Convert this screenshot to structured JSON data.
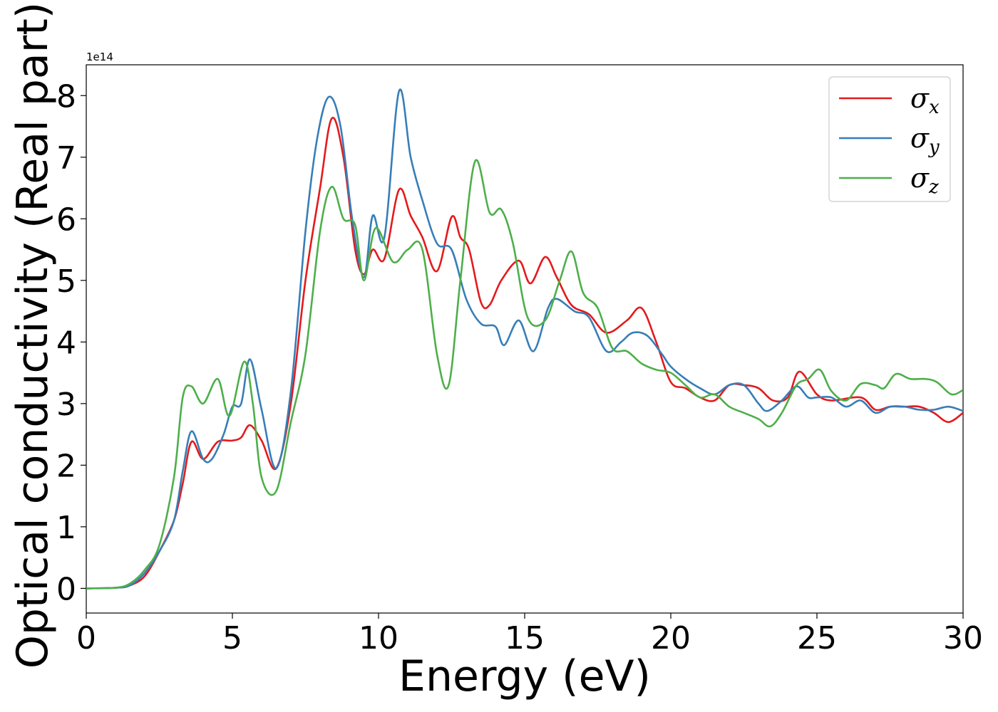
{
  "chart_data": {
    "type": "line",
    "title": "",
    "xlabel": "Energy (eV)",
    "ylabel": "Optical conductivity (Real part)",
    "y_offset_label": "1e14",
    "xlim": [
      0,
      30
    ],
    "ylim": [
      -0.4,
      8.5
    ],
    "xticks": [
      0,
      5,
      10,
      15,
      20,
      25,
      30
    ],
    "yticks": [
      0,
      1,
      2,
      3,
      4,
      5,
      6,
      7,
      8
    ],
    "grid": false,
    "legend_position": "top-right",
    "series": [
      {
        "name": "σ",
        "subscript": "x",
        "color": "#e41a1c",
        "points": [
          [
            0,
            0
          ],
          [
            1,
            0.01
          ],
          [
            1.5,
            0.05
          ],
          [
            2,
            0.2
          ],
          [
            2.5,
            0.6
          ],
          [
            3,
            1.1
          ],
          [
            3.3,
            1.7
          ],
          [
            3.6,
            2.38
          ],
          [
            4,
            2.1
          ],
          [
            4.5,
            2.38
          ],
          [
            5,
            2.4
          ],
          [
            5.3,
            2.45
          ],
          [
            5.6,
            2.65
          ],
          [
            6,
            2.4
          ],
          [
            6.5,
            1.95
          ],
          [
            7,
            3.0
          ],
          [
            7.5,
            5.0
          ],
          [
            8,
            6.5
          ],
          [
            8.4,
            7.63
          ],
          [
            8.8,
            7.0
          ],
          [
            9.2,
            5.5
          ],
          [
            9.5,
            5.1
          ],
          [
            9.8,
            5.5
          ],
          [
            10.2,
            5.35
          ],
          [
            10.7,
            6.47
          ],
          [
            11.1,
            6.05
          ],
          [
            11.5,
            5.7
          ],
          [
            12,
            5.15
          ],
          [
            12.5,
            6.03
          ],
          [
            12.8,
            5.7
          ],
          [
            13.1,
            5.5
          ],
          [
            13.5,
            4.65
          ],
          [
            13.8,
            4.6
          ],
          [
            14.2,
            5.0
          ],
          [
            14.8,
            5.32
          ],
          [
            15.2,
            4.95
          ],
          [
            15.7,
            5.38
          ],
          [
            16.1,
            5.05
          ],
          [
            16.6,
            4.6
          ],
          [
            17.2,
            4.45
          ],
          [
            17.8,
            4.15
          ],
          [
            18.5,
            4.35
          ],
          [
            19,
            4.55
          ],
          [
            19.5,
            4.0
          ],
          [
            20,
            3.35
          ],
          [
            20.5,
            3.25
          ],
          [
            21,
            3.1
          ],
          [
            21.5,
            3.05
          ],
          [
            22,
            3.3
          ],
          [
            22.5,
            3.3
          ],
          [
            23,
            3.25
          ],
          [
            23.5,
            3.05
          ],
          [
            24,
            3.1
          ],
          [
            24.4,
            3.52
          ],
          [
            25,
            3.15
          ],
          [
            25.5,
            3.05
          ],
          [
            26.5,
            3.1
          ],
          [
            27,
            2.9
          ],
          [
            27.5,
            2.95
          ],
          [
            28,
            2.95
          ],
          [
            28.5,
            2.95
          ],
          [
            29,
            2.85
          ],
          [
            29.5,
            2.7
          ],
          [
            30,
            2.85
          ]
        ]
      },
      {
        "name": "σ",
        "subscript": "y",
        "color": "#377eb8",
        "points": [
          [
            0,
            0
          ],
          [
            1,
            0.01
          ],
          [
            1.5,
            0.05
          ],
          [
            2,
            0.25
          ],
          [
            2.5,
            0.6
          ],
          [
            3,
            1.1
          ],
          [
            3.3,
            1.9
          ],
          [
            3.6,
            2.55
          ],
          [
            4,
            2.1
          ],
          [
            4.3,
            2.1
          ],
          [
            4.7,
            2.5
          ],
          [
            5,
            2.95
          ],
          [
            5.3,
            3.0
          ],
          [
            5.6,
            3.72
          ],
          [
            6,
            2.9
          ],
          [
            6.5,
            1.95
          ],
          [
            7,
            3.2
          ],
          [
            7.5,
            5.8
          ],
          [
            7.9,
            7.3
          ],
          [
            8.3,
            7.98
          ],
          [
            8.7,
            7.5
          ],
          [
            9.1,
            6.0
          ],
          [
            9.5,
            5.05
          ],
          [
            9.8,
            6.05
          ],
          [
            10.2,
            5.7
          ],
          [
            10.7,
            8.07
          ],
          [
            11.1,
            7.0
          ],
          [
            11.5,
            6.3
          ],
          [
            12,
            5.6
          ],
          [
            12.5,
            5.5
          ],
          [
            13,
            4.7
          ],
          [
            13.5,
            4.3
          ],
          [
            14,
            4.25
          ],
          [
            14.3,
            3.95
          ],
          [
            14.8,
            4.35
          ],
          [
            15.3,
            3.85
          ],
          [
            15.8,
            4.55
          ],
          [
            16.1,
            4.7
          ],
          [
            16.7,
            4.5
          ],
          [
            17.2,
            4.4
          ],
          [
            17.8,
            3.85
          ],
          [
            18.3,
            4.0
          ],
          [
            18.7,
            4.15
          ],
          [
            19.2,
            4.1
          ],
          [
            19.7,
            3.8
          ],
          [
            20,
            3.6
          ],
          [
            20.5,
            3.4
          ],
          [
            21,
            3.25
          ],
          [
            21.5,
            3.15
          ],
          [
            22,
            3.3
          ],
          [
            22.5,
            3.3
          ],
          [
            23,
            3.0
          ],
          [
            23.3,
            2.88
          ],
          [
            23.8,
            3.05
          ],
          [
            24.3,
            3.28
          ],
          [
            24.7,
            3.1
          ],
          [
            25,
            3.1
          ],
          [
            25.5,
            3.1
          ],
          [
            26,
            2.95
          ],
          [
            26.5,
            3.05
          ],
          [
            27,
            2.85
          ],
          [
            27.5,
            2.95
          ],
          [
            28,
            2.95
          ],
          [
            28.5,
            2.9
          ],
          [
            29,
            2.9
          ],
          [
            29.5,
            2.95
          ],
          [
            30,
            2.88
          ]
        ]
      },
      {
        "name": "σ",
        "subscript": "z",
        "color": "#4daf4a",
        "points": [
          [
            0,
            0
          ],
          [
            1,
            0.01
          ],
          [
            1.5,
            0.08
          ],
          [
            2,
            0.3
          ],
          [
            2.5,
            0.7
          ],
          [
            3,
            1.8
          ],
          [
            3.3,
            3.1
          ],
          [
            3.6,
            3.28
          ],
          [
            4,
            3.0
          ],
          [
            4.5,
            3.4
          ],
          [
            4.9,
            2.8
          ],
          [
            5.4,
            3.68
          ],
          [
            5.7,
            3.0
          ],
          [
            6,
            1.8
          ],
          [
            6.5,
            1.58
          ],
          [
            7,
            2.7
          ],
          [
            7.5,
            3.8
          ],
          [
            8,
            5.8
          ],
          [
            8.4,
            6.52
          ],
          [
            8.8,
            6.0
          ],
          [
            9.2,
            5.9
          ],
          [
            9.5,
            5.0
          ],
          [
            9.9,
            5.85
          ],
          [
            10.5,
            5.3
          ],
          [
            11,
            5.5
          ],
          [
            11.5,
            5.5
          ],
          [
            12,
            3.8
          ],
          [
            12.4,
            3.3
          ],
          [
            12.8,
            5.0
          ],
          [
            13.3,
            6.93
          ],
          [
            13.8,
            6.1
          ],
          [
            14.2,
            6.15
          ],
          [
            14.6,
            5.6
          ],
          [
            15.1,
            4.4
          ],
          [
            15.7,
            4.35
          ],
          [
            16.2,
            5.0
          ],
          [
            16.6,
            5.47
          ],
          [
            17,
            4.8
          ],
          [
            17.5,
            4.55
          ],
          [
            18,
            3.9
          ],
          [
            18.5,
            3.85
          ],
          [
            19,
            3.65
          ],
          [
            19.5,
            3.55
          ],
          [
            20,
            3.5
          ],
          [
            20.5,
            3.3
          ],
          [
            21,
            3.1
          ],
          [
            21.5,
            3.15
          ],
          [
            22,
            2.95
          ],
          [
            22.5,
            2.85
          ],
          [
            23,
            2.75
          ],
          [
            23.4,
            2.63
          ],
          [
            23.8,
            2.85
          ],
          [
            24.3,
            3.3
          ],
          [
            24.7,
            3.4
          ],
          [
            25.1,
            3.55
          ],
          [
            25.5,
            3.2
          ],
          [
            26,
            3.05
          ],
          [
            26.5,
            3.32
          ],
          [
            27,
            3.3
          ],
          [
            27.3,
            3.25
          ],
          [
            27.7,
            3.48
          ],
          [
            28.2,
            3.4
          ],
          [
            28.7,
            3.4
          ],
          [
            29.1,
            3.35
          ],
          [
            29.6,
            3.15
          ],
          [
            30,
            3.22
          ]
        ]
      }
    ]
  }
}
